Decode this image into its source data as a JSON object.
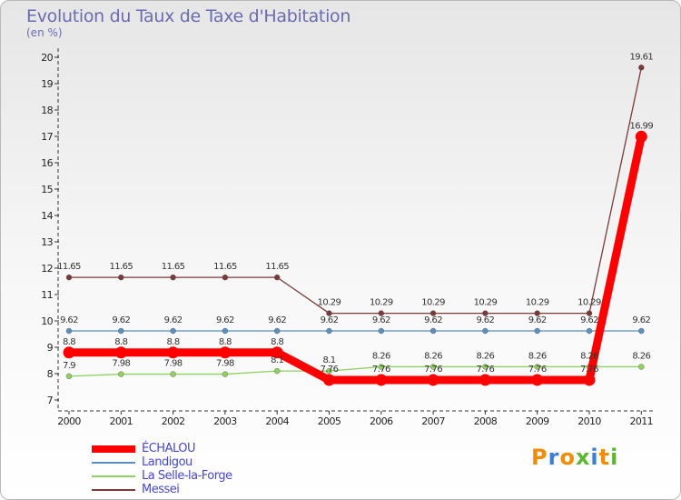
{
  "chart_data": {
    "type": "line",
    "title": "Evolution du Taux de Taxe d'Habitation",
    "ylabel": "(en %)",
    "xlabel": "",
    "categories": [
      "2000",
      "2001",
      "2002",
      "2003",
      "2004",
      "2005",
      "2006",
      "2007",
      "2008",
      "2009",
      "2010",
      "2011"
    ],
    "yticks": [
      "7",
      "8",
      "9",
      "10",
      "11",
      "12",
      "13",
      "14",
      "15",
      "16",
      "17",
      "18",
      "19",
      "20"
    ],
    "ylim": [
      7,
      20
    ],
    "grid": false,
    "legend_position": "bottom-left",
    "series": [
      {
        "name": "ÉCHALOU",
        "color": "#ff0000",
        "values": [
          8.8,
          8.8,
          8.8,
          8.8,
          8.8,
          7.76,
          7.76,
          7.76,
          7.76,
          7.76,
          7.76,
          16.99
        ],
        "labels": [
          "8.8",
          "8.8",
          "8.8",
          "8.8",
          "8.8",
          "7.76",
          "7.76",
          "7.76",
          "7.76",
          "7.76",
          "7.76",
          "16.99"
        ]
      },
      {
        "name": "Landigou",
        "color": "#5b8fc0",
        "values": [
          9.62,
          9.62,
          9.62,
          9.62,
          9.62,
          9.62,
          9.62,
          9.62,
          9.62,
          9.62,
          9.62,
          9.62
        ],
        "labels": [
          "9.62",
          "9.62",
          "9.62",
          "9.62",
          "9.62",
          "9.62",
          "9.62",
          "9.62",
          "9.62",
          "9.62",
          "9.62",
          "9.62"
        ]
      },
      {
        "name": "La Selle-la-Forge",
        "color": "#8fd060",
        "values": [
          7.9,
          7.98,
          7.98,
          7.98,
          8.1,
          8.1,
          8.26,
          8.26,
          8.26,
          8.26,
          8.26,
          8.26
        ],
        "labels": [
          "7.9",
          "7.98",
          "7.98",
          "7.98",
          "8.1",
          "8.1",
          "8.26",
          "8.26",
          "8.26",
          "8.26",
          "8.26",
          "8.26"
        ]
      },
      {
        "name": "Messei",
        "color": "#7a3a3a",
        "values": [
          11.65,
          11.65,
          11.65,
          11.65,
          11.65,
          10.29,
          10.29,
          10.29,
          10.29,
          10.29,
          10.29,
          19.61
        ],
        "labels": [
          "11.65",
          "11.65",
          "11.65",
          "11.65",
          "11.65",
          "10.29",
          "10.29",
          "10.29",
          "10.29",
          "10.29",
          "10.29",
          "19.61"
        ]
      }
    ]
  },
  "logo": {
    "text": "Proxiti",
    "letter_colors": [
      "#f28c00",
      "#3d7fd1",
      "#f28c00",
      "#5cb82e",
      "#3d7fd1",
      "#f28c00",
      "#5cb82e"
    ]
  }
}
